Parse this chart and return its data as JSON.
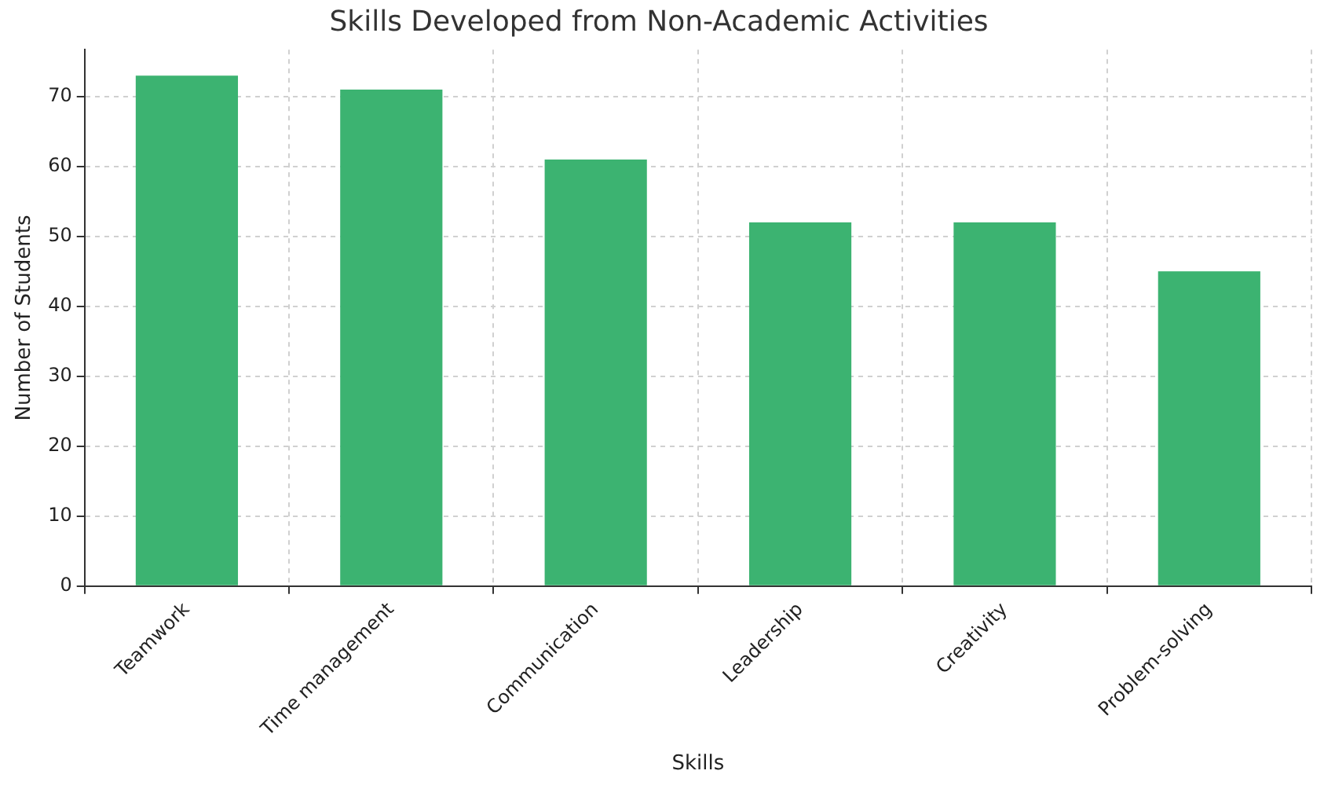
{
  "chart_data": {
    "type": "bar",
    "title": "Skills Developed from Non-Academic Activities",
    "xlabel": "Skills",
    "ylabel": "Number of Students",
    "categories": [
      "Teamwork",
      "Time management",
      "Communication",
      "Leadership",
      "Creativity",
      "Problem-solving"
    ],
    "values": [
      73,
      71,
      61,
      52,
      52,
      45
    ],
    "color": "#3cb371",
    "ylim": [
      0,
      76.7
    ],
    "yticks": [
      0,
      10,
      20,
      30,
      40,
      50,
      60,
      70
    ],
    "grid": true
  }
}
